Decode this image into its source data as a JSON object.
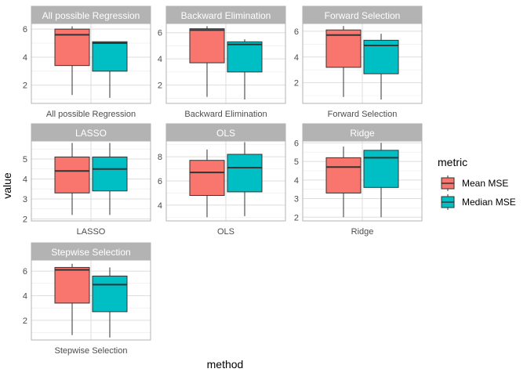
{
  "chart_data": {
    "type": "boxplot",
    "facet_by": "method",
    "xlabel": "method",
    "ylabel": "value",
    "legend": {
      "title": "metric",
      "position": "right",
      "entries": [
        {
          "name": "Mean MSE",
          "color": "#F8766D"
        },
        {
          "name": "Median MSE",
          "color": "#00BFC4"
        }
      ]
    },
    "grid": true,
    "panels": [
      {
        "title": "All possible Regression",
        "category": "All possible Regression",
        "ylim": [
          0.7,
          6.4
        ],
        "yticks": [
          2,
          4,
          6
        ],
        "boxes": [
          {
            "series": "Mean MSE",
            "min": 1.3,
            "q1": 3.4,
            "median": 5.6,
            "q3": 6.0,
            "max": 6.2
          },
          {
            "series": "Median MSE",
            "min": 1.1,
            "q1": 3.0,
            "median": 5.0,
            "q3": 5.1,
            "max": 5.1
          }
        ]
      },
      {
        "title": "Backward Elimination",
        "category": "Backward Elimination",
        "ylim": [
          0.6,
          6.7
        ],
        "yticks": [
          2,
          4,
          6
        ],
        "boxes": [
          {
            "series": "Mean MSE",
            "min": 1.1,
            "q1": 3.7,
            "median": 6.2,
            "q3": 6.3,
            "max": 6.5
          },
          {
            "series": "Median MSE",
            "min": 0.9,
            "q1": 3.0,
            "median": 5.1,
            "q3": 5.3,
            "max": 5.5
          }
        ]
      },
      {
        "title": "Forward Selection",
        "category": "Forward Selection",
        "ylim": [
          0.4,
          6.6
        ],
        "yticks": [
          2,
          4,
          6
        ],
        "boxes": [
          {
            "series": "Mean MSE",
            "min": 0.9,
            "q1": 3.2,
            "median": 5.7,
            "q3": 6.1,
            "max": 6.4
          },
          {
            "series": "Median MSE",
            "min": 0.7,
            "q1": 2.7,
            "median": 4.9,
            "q3": 5.3,
            "max": 5.8
          }
        ]
      },
      {
        "title": "LASSO",
        "category": "LASSO",
        "ylim": [
          1.9,
          5.9
        ],
        "yticks": [
          2,
          3,
          4,
          5
        ],
        "boxes": [
          {
            "series": "Mean MSE",
            "min": 2.2,
            "q1": 3.3,
            "median": 4.4,
            "q3": 5.1,
            "max": 5.8
          },
          {
            "series": "Median MSE",
            "min": 2.2,
            "q1": 3.4,
            "median": 4.5,
            "q3": 5.1,
            "max": 5.8
          }
        ]
      },
      {
        "title": "OLS",
        "category": "OLS",
        "ylim": [
          2.7,
          9.3
        ],
        "yticks": [
          4,
          6,
          8
        ],
        "boxes": [
          {
            "series": "Mean MSE",
            "min": 3.0,
            "q1": 4.8,
            "median": 6.7,
            "q3": 7.7,
            "max": 8.6
          },
          {
            "series": "Median MSE",
            "min": 3.1,
            "q1": 5.1,
            "median": 7.1,
            "q3": 8.2,
            "max": 9.2
          }
        ]
      },
      {
        "title": "Ridge",
        "category": "Ridge",
        "ylim": [
          1.8,
          6.1
        ],
        "yticks": [
          2,
          3,
          4,
          5,
          6
        ],
        "boxes": [
          {
            "series": "Mean MSE",
            "min": 2.0,
            "q1": 3.3,
            "median": 4.7,
            "q3": 5.2,
            "max": 5.8
          },
          {
            "series": "Median MSE",
            "min": 2.0,
            "q1": 3.6,
            "median": 5.2,
            "q3": 5.6,
            "max": 6.0
          }
        ]
      },
      {
        "title": "Stepwise Selection",
        "category": "Stepwise Selection",
        "ylim": [
          0.4,
          6.9
        ],
        "yticks": [
          2,
          4,
          6
        ],
        "boxes": [
          {
            "series": "Mean MSE",
            "min": 0.8,
            "q1": 3.4,
            "median": 6.1,
            "q3": 6.3,
            "max": 6.6
          },
          {
            "series": "Median MSE",
            "min": 0.6,
            "q1": 2.7,
            "median": 4.9,
            "q3": 5.6,
            "max": 6.3
          }
        ]
      }
    ]
  }
}
